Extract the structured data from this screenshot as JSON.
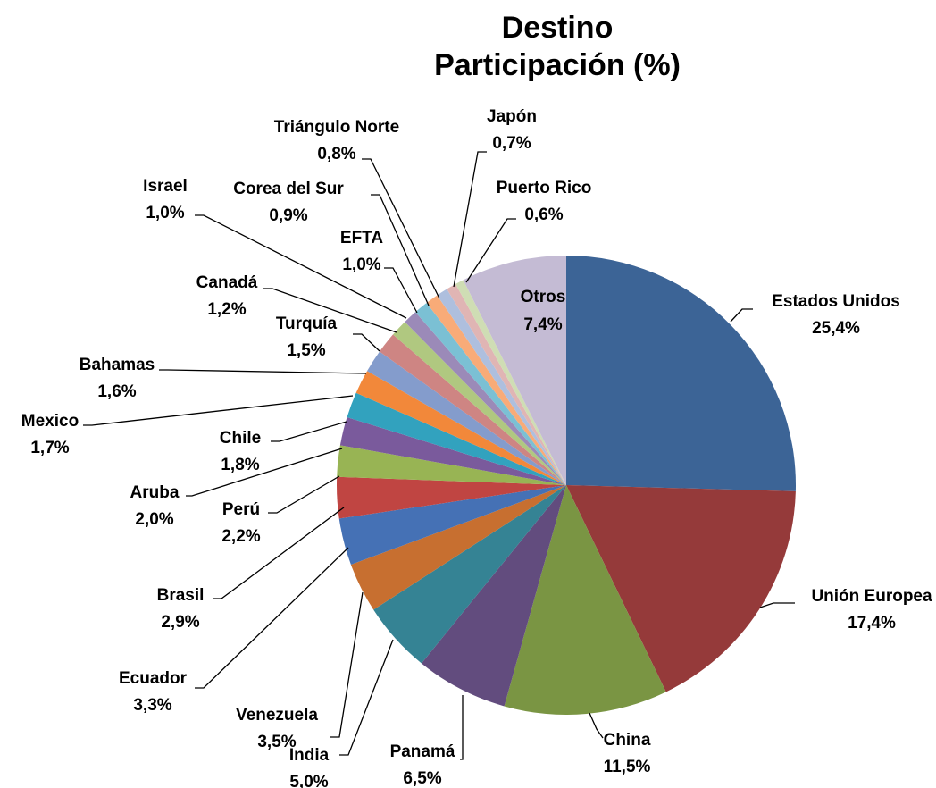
{
  "chart_data": {
    "type": "pie",
    "title_lines": [
      "Destino",
      "Participación (%)"
    ],
    "slices": [
      {
        "name": "Estados Unidos",
        "value": 25.4,
        "label": "25,4%",
        "color": "#3c6496"
      },
      {
        "name": "Unión Europea",
        "value": 17.4,
        "label": "17,4%",
        "color": "#953a3a"
      },
      {
        "name": "China",
        "value": 11.5,
        "label": "11,5%",
        "color": "#7a9543"
      },
      {
        "name": "Panamá",
        "value": 6.5,
        "label": "6,5%",
        "color": "#624c7e"
      },
      {
        "name": "India",
        "value": 5.0,
        "label": "5,0%",
        "color": "#358394"
      },
      {
        "name": "Venezuela",
        "value": 3.5,
        "label": "3,5%",
        "color": "#c76f30"
      },
      {
        "name": "Ecuador",
        "value": 3.3,
        "label": "3,3%",
        "color": "#4571b5"
      },
      {
        "name": "Brasil",
        "value": 2.9,
        "label": "2,9%",
        "color": "#c04542"
      },
      {
        "name": "Perú",
        "value": 2.2,
        "label": "2,2%",
        "color": "#98b454"
      },
      {
        "name": "Aruba",
        "value": 2.0,
        "label": "2,0%",
        "color": "#7a5a9c"
      },
      {
        "name": "Chile",
        "value": 1.8,
        "label": "1,8%",
        "color": "#32a2be"
      },
      {
        "name": "Mexico",
        "value": 1.7,
        "label": "1,7%",
        "color": "#f2883a"
      },
      {
        "name": "Bahamas",
        "value": 1.6,
        "label": "1,6%",
        "color": "#849ccc"
      },
      {
        "name": "Turquía",
        "value": 1.5,
        "label": "1,5%",
        "color": "#ce8583"
      },
      {
        "name": "Canadá",
        "value": 1.2,
        "label": "1,2%",
        "color": "#b0c880"
      },
      {
        "name": "EFTA",
        "value": 1.0,
        "label": "1,0%",
        "color": "#9b8ab8"
      },
      {
        "name": "Israel",
        "value": 1.0,
        "label": "1,0%",
        "color": "#7bc0d4"
      },
      {
        "name": "Corea del Sur",
        "value": 0.9,
        "label": "0,9%",
        "color": "#f8ab78"
      },
      {
        "name": "Triángulo Norte",
        "value": 0.8,
        "label": "0,8%",
        "color": "#aebfde"
      },
      {
        "name": "Japón",
        "value": 0.7,
        "label": "0,7%",
        "color": "#e0b5b4"
      },
      {
        "name": "Puerto Rico",
        "value": 0.6,
        "label": "0,6%",
        "color": "#cfddb4"
      },
      {
        "name": "Otros",
        "value": 7.4,
        "label": "7,4%",
        "color": "#c4bbd4"
      }
    ]
  }
}
